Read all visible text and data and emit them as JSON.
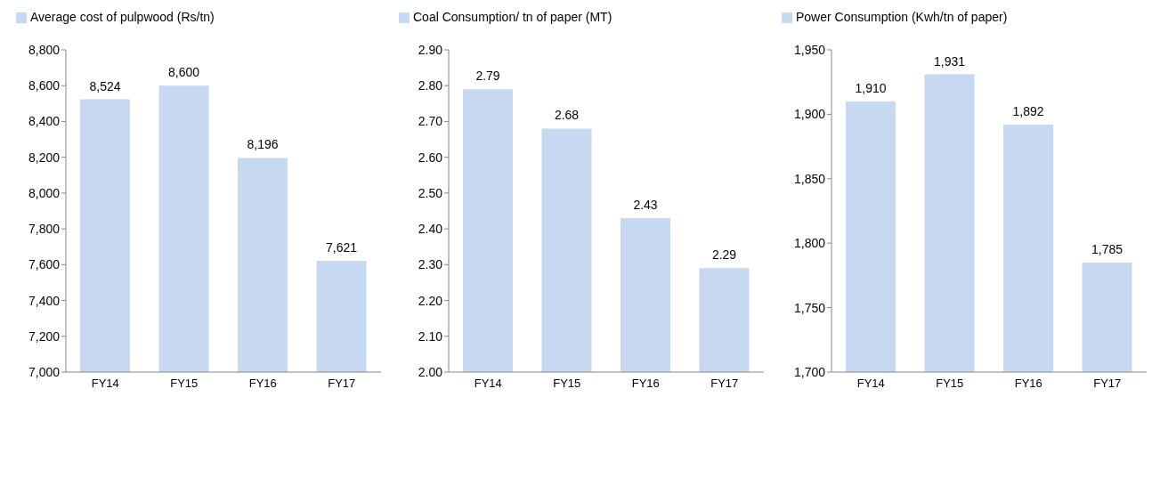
{
  "chart_data": [
    {
      "type": "bar",
      "categories": [
        "FY14",
        "FY15",
        "FY16",
        "FY17"
      ],
      "series": [
        {
          "name": "Average cost of pulpwood  (Rs/tn)",
          "color": "#c6d9f1",
          "values": [
            8524,
            8600,
            8196,
            7621
          ],
          "value_labels": [
            "8,524",
            "8,600",
            "8,196",
            "7,621"
          ]
        }
      ],
      "ylim": [
        7000,
        8800
      ],
      "yticks": [
        {
          "value": 7000,
          "label": "7,000"
        },
        {
          "value": 7200,
          "label": "7,200"
        },
        {
          "value": 7400,
          "label": "7,400"
        },
        {
          "value": 7600,
          "label": "7,600"
        },
        {
          "value": 7800,
          "label": "7,800"
        },
        {
          "value": 8000,
          "label": "8,000"
        },
        {
          "value": 8200,
          "label": "8,200"
        },
        {
          "value": 8400,
          "label": "8,400"
        },
        {
          "value": 8600,
          "label": "8,600"
        },
        {
          "value": 8800,
          "label": "8,800"
        }
      ],
      "legend": "top left",
      "grid": false
    },
    {
      "type": "bar",
      "categories": [
        "FY14",
        "FY15",
        "FY16",
        "FY17"
      ],
      "series": [
        {
          "name": "Coal Consumption/ tn of paper (MT)",
          "color": "#c6d9f1",
          "values": [
            2.79,
            2.68,
            2.43,
            2.29
          ],
          "value_labels": [
            "2.79",
            "2.68",
            "2.43",
            "2.29"
          ]
        }
      ],
      "ylim": [
        2.0,
        2.9
      ],
      "yticks": [
        {
          "value": 2.0,
          "label": "2.00"
        },
        {
          "value": 2.1,
          "label": "2.10"
        },
        {
          "value": 2.2,
          "label": "2.20"
        },
        {
          "value": 2.3,
          "label": "2.30"
        },
        {
          "value": 2.4,
          "label": "2.40"
        },
        {
          "value": 2.5,
          "label": "2.50"
        },
        {
          "value": 2.6,
          "label": "2.60"
        },
        {
          "value": 2.7,
          "label": "2.70"
        },
        {
          "value": 2.8,
          "label": "2.80"
        },
        {
          "value": 2.9,
          "label": "2.90"
        }
      ],
      "legend": "top left",
      "grid": false
    },
    {
      "type": "bar",
      "categories": [
        "FY14",
        "FY15",
        "FY16",
        "FY17"
      ],
      "series": [
        {
          "name": "Power Consumption (Kwh/tn of paper)",
          "color": "#c6d9f1",
          "values": [
            1910,
            1931,
            1892,
            1785
          ],
          "value_labels": [
            "1,910",
            "1,931",
            "1,892",
            "1,785"
          ]
        }
      ],
      "ylim": [
        1700,
        1950
      ],
      "yticks": [
        {
          "value": 1700,
          "label": "1,700"
        },
        {
          "value": 1750,
          "label": "1,750"
        },
        {
          "value": 1800,
          "label": "1,800"
        },
        {
          "value": 1850,
          "label": "1,850"
        },
        {
          "value": 1900,
          "label": "1,900"
        },
        {
          "value": 1950,
          "label": "1,950"
        }
      ],
      "legend": "top left",
      "grid": false
    }
  ]
}
